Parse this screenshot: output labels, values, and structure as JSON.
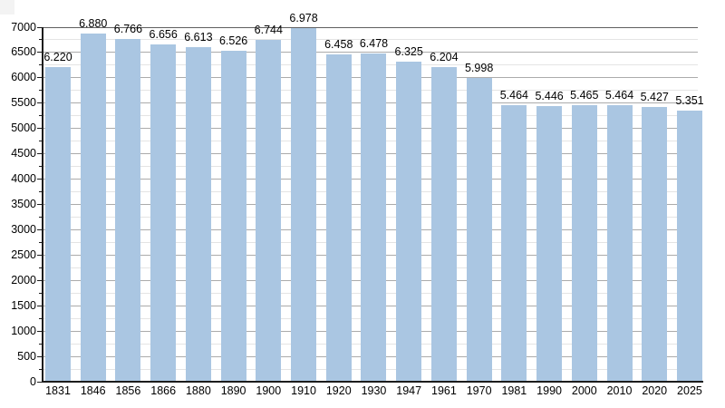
{
  "chart_data": {
    "type": "bar",
    "title": "",
    "xlabel": "",
    "ylabel": "",
    "categories": [
      "1831",
      "1846",
      "1856",
      "1866",
      "1880",
      "1890",
      "1900",
      "1910",
      "1920",
      "1930",
      "1947",
      "1961",
      "1970",
      "1981",
      "1990",
      "2000",
      "2010",
      "2020",
      "2025"
    ],
    "values": [
      6220,
      6880,
      6766,
      6656,
      6613,
      6526,
      6744,
      6978,
      6458,
      6478,
      6325,
      6204,
      5998,
      5464,
      5446,
      5465,
      5464,
      5427,
      5351
    ],
    "bar_labels": [
      "6.220",
      "6.880",
      "6.766",
      "6.656",
      "6.613",
      "6.526",
      "6.744",
      "6.978",
      "6.458",
      "6.478",
      "6.325",
      "6.204",
      "5.998",
      "5.464",
      "5.446",
      "5.465",
      "5.464",
      "5.427",
      "5.351"
    ],
    "ylim": [
      0,
      7000
    ],
    "y_major_step": 500,
    "y_minor_step": 250,
    "y_tick_labels": [
      "0",
      "500",
      "1000",
      "1500",
      "2000",
      "2500",
      "3000",
      "3500",
      "4000",
      "4500",
      "5000",
      "5500",
      "6000",
      "6500",
      "7000"
    ],
    "grid": true,
    "legend": false,
    "colors": {
      "bar_fill": "#aac6e2",
      "grid_top": "#5f5f5f",
      "grid_major": "#ababab",
      "grid_minor": "#e4e4e4",
      "axis": "#1c1c1c",
      "text": "#000000",
      "background": "#ffffff"
    }
  }
}
